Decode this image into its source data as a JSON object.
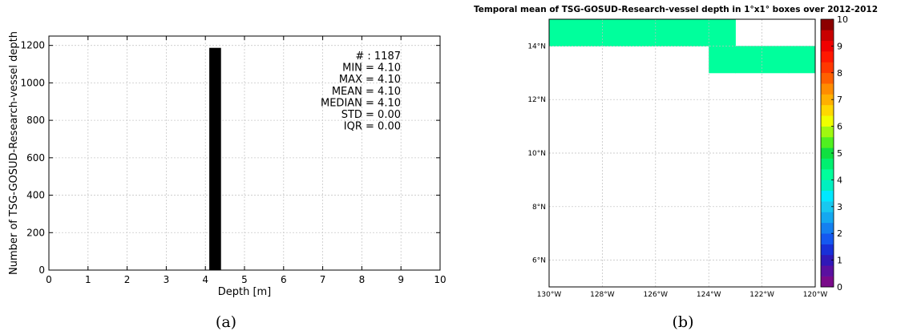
{
  "chart_data": [
    {
      "type": "bar",
      "panel_label": "(a)",
      "xlabel": "Depth [m]",
      "ylabel": "Number of TSG-GOSUD-Research-vessel depth",
      "xlim": [
        0,
        10
      ],
      "ylim": [
        0,
        1250
      ],
      "xticks": [
        "0",
        "1",
        "2",
        "3",
        "4",
        "5",
        "6",
        "7",
        "8",
        "9",
        "10"
      ],
      "yticks": [
        "0",
        "200",
        "400",
        "600",
        "800",
        "1000",
        "1200"
      ],
      "grid": true,
      "bars": [
        {
          "x_start": 4.1,
          "x_end": 4.4,
          "value": 1187
        }
      ],
      "bar_color": "#000000",
      "stats": [
        "# : 1187",
        "MIN = 4.10",
        "MAX =  4.10",
        "MEAN = 4.10",
        "MEDIAN = 4.10",
        "STD = 0.00",
        "IQR = 0.00"
      ]
    },
    {
      "type": "heatmap",
      "panel_label": "(b)",
      "title": "Temporal mean of TSG-GOSUD-Research-vessel depth in 1°x1° boxes over 2012-2012",
      "lon_range": [
        -130,
        -120
      ],
      "lat_range": [
        5,
        15
      ],
      "xticks": [
        {
          "value": -130,
          "label": "130°W"
        },
        {
          "value": -128,
          "label": "128°W"
        },
        {
          "value": -126,
          "label": "126°W"
        },
        {
          "value": -124,
          "label": "124°W"
        },
        {
          "value": -122,
          "label": "122°W"
        },
        {
          "value": -120,
          "label": "120°W"
        }
      ],
      "yticks": [
        {
          "value": 6,
          "label": "6°N"
        },
        {
          "value": 8,
          "label": "8°N"
        },
        {
          "value": 10,
          "label": "10°N"
        },
        {
          "value": 12,
          "label": "12°N"
        },
        {
          "value": 14,
          "label": "14°N"
        }
      ],
      "grid": true,
      "cells": [
        {
          "lon": -130,
          "lat": 14,
          "value": 4.1
        },
        {
          "lon": -129,
          "lat": 14,
          "value": 4.1
        },
        {
          "lon": -128,
          "lat": 14,
          "value": 4.1
        },
        {
          "lon": -127,
          "lat": 14,
          "value": 4.1
        },
        {
          "lon": -126,
          "lat": 14,
          "value": 4.1
        },
        {
          "lon": -125,
          "lat": 14,
          "value": 4.1
        },
        {
          "lon": -124,
          "lat": 14,
          "value": 4.1
        },
        {
          "lon": -124,
          "lat": 13,
          "value": 4.1
        },
        {
          "lon": -123,
          "lat": 13,
          "value": 4.1
        },
        {
          "lon": -122,
          "lat": 13,
          "value": 4.1
        },
        {
          "lon": -121,
          "lat": 13,
          "value": 4.1
        }
      ],
      "colorbar": {
        "range": [
          0,
          10
        ],
        "ticks": [
          "0",
          "1",
          "2",
          "3",
          "4",
          "5",
          "6",
          "7",
          "8",
          "9",
          "10"
        ],
        "colors": [
          "#7a0a8a",
          "#5a10a0",
          "#3018b8",
          "#1830d8",
          "#1458f0",
          "#1480f0",
          "#14a8f0",
          "#18c8f0",
          "#00e8ff",
          "#00f0c0",
          "#00ff9c",
          "#00f070",
          "#10e040",
          "#50f020",
          "#a0f810",
          "#f0ff00",
          "#ffd800",
          "#ffb000",
          "#ff8c00",
          "#ff6000",
          "#ff3800",
          "#ff1800",
          "#f00000",
          "#c80000",
          "#8c0000"
        ]
      }
    }
  ]
}
